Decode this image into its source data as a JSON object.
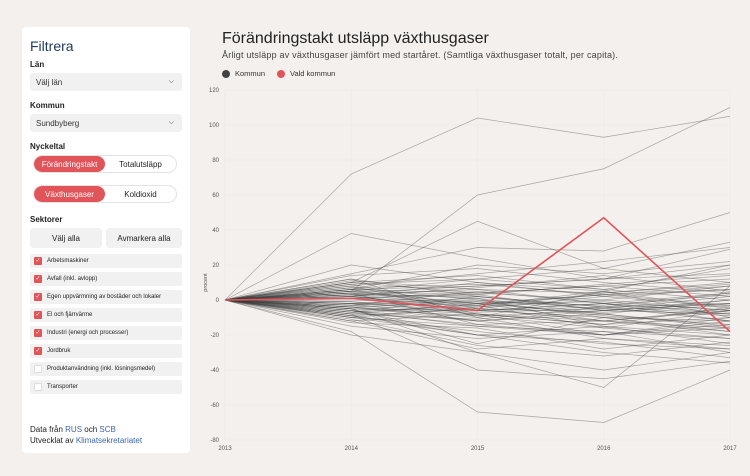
{
  "sidebar": {
    "title": "Filtrera",
    "lan_label": "Län",
    "lan_value": "Välj län",
    "kommun_label": "Kommun",
    "kommun_value": "Sundbyberg",
    "nyckeltal_label": "Nyckeltal",
    "nyckeltal_options": [
      "Förändringstakt",
      "Totalutsläpp"
    ],
    "nyckeltal_selected": "Förändringstakt",
    "gas_options": [
      "Växthusgaser",
      "Koldioxid"
    ],
    "gas_selected": "Växthusgaser",
    "sektorer_label": "Sektorer",
    "select_all": "Välj alla",
    "deselect_all": "Avmarkera alla",
    "sectors": [
      {
        "label": "Arbetsmaskiner",
        "checked": true
      },
      {
        "label": "Avfall (inkl. avlopp)",
        "checked": true
      },
      {
        "label": "Egen uppvärmning av bostäder och lokaler",
        "checked": true
      },
      {
        "label": "El och fjärrvärme",
        "checked": true
      },
      {
        "label": "Industri (energi och processer)",
        "checked": true
      },
      {
        "label": "Jordbruk",
        "checked": true
      },
      {
        "label": "Produktanvändning (inkl. lösningsmedel)",
        "checked": false
      },
      {
        "label": "Transporter",
        "checked": false
      }
    ],
    "footer": {
      "line1_prefix": "Data från",
      "link_rus": "RUS",
      "and": "och",
      "link_scb": "SCB",
      "line2_prefix": "Utvecklat av",
      "link_klimat": "Klimatsekretariatet"
    }
  },
  "colors": {
    "accent": "#e0545a",
    "link": "#3a67b0",
    "kommun_line": "#444444",
    "kommun_dot": "#444444"
  },
  "chart_data": {
    "type": "line",
    "title": "Förändringstakt utsläpp växthusgaser",
    "subtitle": "Årligt utsläpp av växthusgaser jämfört med startåret. (Samtliga växthusgaser totalt, per capita).",
    "xlabel": "",
    "ylabel": "procent",
    "x": [
      "2013",
      "2014",
      "2015",
      "2016",
      "2017"
    ],
    "ylim": [
      -80,
      120
    ],
    "yticks": [
      120,
      100,
      80,
      60,
      40,
      20,
      0,
      -20,
      -40,
      -60,
      -80
    ],
    "legend": [
      "Kommun",
      "Vald kommun"
    ],
    "legend_position": "top-left",
    "grid": true,
    "highlight": {
      "name": "Vald kommun",
      "values": [
        0,
        1,
        -6,
        47,
        -18
      ]
    },
    "background_series": [
      [
        0,
        72,
        104,
        93,
        105
      ],
      [
        0,
        5,
        60,
        75,
        110
      ],
      [
        0,
        38,
        24,
        12,
        29
      ],
      [
        0,
        10,
        45,
        18,
        33
      ],
      [
        0,
        -5,
        -30,
        -50,
        8
      ],
      [
        0,
        -18,
        -64,
        -70,
        -40
      ],
      [
        0,
        20,
        10,
        5,
        20
      ],
      [
        0,
        -10,
        -20,
        -15,
        -25
      ],
      [
        0,
        8,
        15,
        22,
        30
      ],
      [
        0,
        -8,
        -40,
        -45,
        -35
      ],
      [
        0,
        15,
        30,
        28,
        50
      ],
      [
        0,
        -20,
        -30,
        -40,
        -30
      ],
      [
        0,
        12,
        -10,
        5,
        -5
      ],
      [
        0,
        -4,
        -12,
        -8,
        -15
      ],
      [
        0,
        4,
        -2,
        3,
        8
      ],
      [
        0,
        -2,
        -6,
        -10,
        -12
      ],
      [
        0,
        3,
        2,
        -4,
        -2
      ],
      [
        0,
        -6,
        -15,
        -18,
        -22
      ],
      [
        0,
        6,
        8,
        12,
        15
      ],
      [
        0,
        -12,
        -8,
        -20,
        -10
      ],
      [
        0,
        2,
        -4,
        0,
        -6
      ],
      [
        0,
        -3,
        5,
        -2,
        4
      ],
      [
        0,
        7,
        0,
        -5,
        2
      ],
      [
        0,
        -9,
        -18,
        -25,
        -28
      ],
      [
        0,
        10,
        4,
        8,
        12
      ],
      [
        0,
        -1,
        -8,
        -12,
        -5
      ],
      [
        0,
        5,
        12,
        6,
        0
      ],
      [
        0,
        -15,
        -22,
        -18,
        -30
      ],
      [
        0,
        1,
        3,
        -6,
        -8
      ],
      [
        0,
        -7,
        2,
        -4,
        -12
      ],
      [
        0,
        9,
        -5,
        2,
        6
      ],
      [
        0,
        -5,
        -25,
        -10,
        -18
      ],
      [
        0,
        14,
        18,
        10,
        4
      ],
      [
        0,
        -2,
        1,
        -15,
        -20
      ],
      [
        0,
        4,
        -14,
        -20,
        -14
      ],
      [
        0,
        -10,
        -4,
        4,
        10
      ],
      [
        0,
        6,
        20,
        15,
        22
      ],
      [
        0,
        -8,
        -2,
        -8,
        0
      ],
      [
        0,
        2,
        7,
        14,
        5
      ],
      [
        0,
        -4,
        -10,
        -22,
        -26
      ],
      [
        0,
        3,
        -3,
        5,
        -10
      ],
      [
        0,
        -6,
        -12,
        -6,
        -2
      ],
      [
        0,
        11,
        6,
        -2,
        -8
      ],
      [
        0,
        -13,
        -16,
        -28,
        -20
      ],
      [
        0,
        1,
        -1,
        -3,
        3
      ],
      [
        0,
        -3,
        -7,
        -5,
        -9
      ],
      [
        0,
        5,
        3,
        9,
        14
      ],
      [
        0,
        -9,
        -5,
        -12,
        -16
      ],
      [
        0,
        8,
        -8,
        -14,
        -4
      ],
      [
        0,
        -11,
        -26,
        -32,
        -24
      ],
      [
        0,
        2,
        10,
        2,
        -4
      ],
      [
        0,
        -5,
        -9,
        -16,
        -6
      ],
      [
        0,
        4,
        1,
        -8,
        -16
      ],
      [
        0,
        -2,
        -3,
        3,
        6
      ],
      [
        0,
        6,
        -6,
        -2,
        -12
      ],
      [
        0,
        -7,
        -14,
        -12,
        -18
      ],
      [
        0,
        3,
        6,
        4,
        9
      ],
      [
        0,
        -4,
        -1,
        -9,
        -14
      ],
      [
        0,
        12,
        2,
        -6,
        0
      ],
      [
        0,
        -6,
        -20,
        -24,
        -33
      ],
      [
        0,
        1,
        4,
        8,
        2
      ],
      [
        0,
        -8,
        -11,
        -4,
        -8
      ],
      [
        0,
        5,
        -2,
        -12,
        -6
      ],
      [
        0,
        -1,
        -5,
        -7,
        -3
      ],
      [
        0,
        7,
        9,
        3,
        -3
      ],
      [
        0,
        -10,
        -15,
        -20,
        -12
      ],
      [
        0,
        2,
        -6,
        -4,
        4
      ],
      [
        0,
        -3,
        0,
        -10,
        -20
      ],
      [
        0,
        9,
        12,
        18,
        10
      ],
      [
        0,
        -12,
        -28,
        -22,
        -28
      ],
      [
        0,
        0,
        -2,
        -1,
        -6
      ],
      [
        0,
        -4,
        -8,
        -14,
        -10
      ],
      [
        0,
        6,
        4,
        0,
        8
      ],
      [
        0,
        -7,
        -3,
        -16,
        -22
      ],
      [
        0,
        3,
        -9,
        -6,
        -2
      ],
      [
        0,
        -2,
        -12,
        -20,
        -16
      ],
      [
        0,
        10,
        14,
        6,
        18
      ],
      [
        0,
        -5,
        -6,
        -2,
        -7
      ],
      [
        0,
        4,
        8,
        12,
        20
      ],
      [
        0,
        -9,
        -20,
        -30,
        -36
      ]
    ]
  }
}
